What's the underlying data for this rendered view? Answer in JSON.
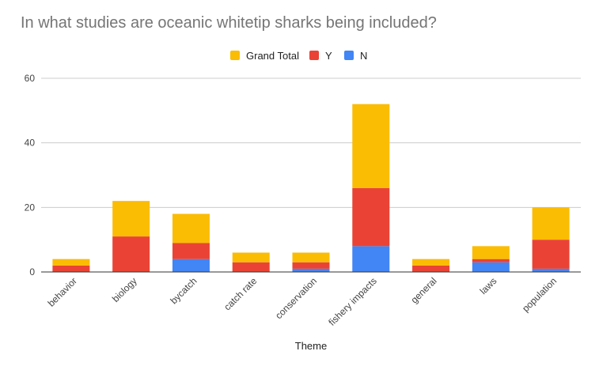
{
  "colors": {
    "grand_total": "#FBBC04",
    "y": "#EA4335",
    "n": "#4285F4",
    "grid": "#cccccc",
    "axis": "#333333"
  },
  "chart_data": {
    "type": "bar",
    "title": "In what studies are oceanic whitetip sharks being included?",
    "xlabel": "Theme",
    "ylabel": "",
    "ylim": [
      0,
      60
    ],
    "yticks": [
      "0",
      "20",
      "40",
      "60"
    ],
    "stacked": true,
    "legend_position": "top",
    "grid": true,
    "categories": [
      "behavior",
      "biology",
      "bycatch",
      "catch rate",
      "conservation",
      "fishery impacts",
      "general",
      "laws",
      "population"
    ],
    "series": [
      {
        "name": "N",
        "color": "#4285F4",
        "values": [
          0,
          0,
          4,
          0,
          1,
          8,
          0,
          3,
          1
        ]
      },
      {
        "name": "Y",
        "color": "#EA4335",
        "values": [
          2,
          11,
          5,
          3,
          2,
          18,
          2,
          1,
          9
        ]
      },
      {
        "name": "Grand Total",
        "color": "#FBBC04",
        "values": [
          2,
          11,
          9,
          3,
          3,
          26,
          2,
          4,
          10
        ]
      }
    ],
    "legend": [
      "Grand Total",
      "Y",
      "N"
    ]
  }
}
